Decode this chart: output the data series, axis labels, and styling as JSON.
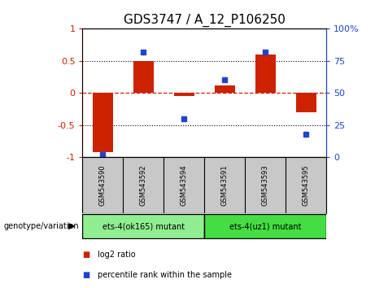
{
  "title": "GDS3747 / A_12_P106250",
  "samples": [
    "GSM543590",
    "GSM543592",
    "GSM543594",
    "GSM543591",
    "GSM543593",
    "GSM543595"
  ],
  "log2_ratio": [
    -0.92,
    0.5,
    -0.05,
    0.12,
    0.6,
    -0.3
  ],
  "percentile": [
    2.0,
    82.0,
    30.0,
    60.0,
    82.0,
    18.0
  ],
  "groups": [
    {
      "label": "ets-4(ok165) mutant",
      "indices": [
        0,
        1,
        2
      ],
      "color": "#90EE90"
    },
    {
      "label": "ets-4(uz1) mutant",
      "indices": [
        3,
        4,
        5
      ],
      "color": "#44DD44"
    }
  ],
  "group_header": "genotype/variation",
  "bar_color": "#CC2200",
  "dot_color": "#2244CC",
  "ylim_left": [
    -1.0,
    1.0
  ],
  "ylim_right": [
    0,
    100
  ],
  "yticks_left": [
    -1.0,
    -0.5,
    0.0,
    0.5,
    1.0
  ],
  "yticks_right": [
    0,
    25,
    50,
    75,
    100
  ],
  "ytick_labels_left": [
    "-1",
    "-0.5",
    "0",
    "0.5",
    "1"
  ],
  "ytick_labels_right": [
    "0",
    "25",
    "50",
    "75",
    "100%"
  ],
  "legend_log2": "log2 ratio",
  "legend_pct": "percentile rank within the sample",
  "bg_color_plot": "#FFFFFF",
  "bg_color_sample": "#C8C8C8",
  "title_fontsize": 11,
  "tick_fontsize": 8,
  "label_fontsize": 7
}
